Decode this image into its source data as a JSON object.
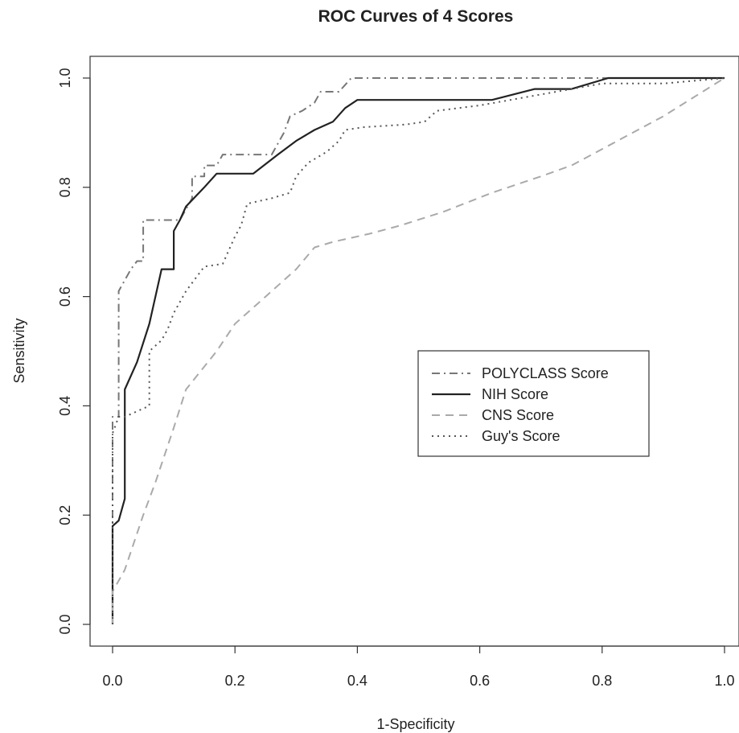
{
  "chart_data": {
    "type": "line",
    "title": "ROC Curves of 4 Scores",
    "xlabel": "1-Specificity",
    "ylabel": "Sensitivity",
    "xlim": [
      0,
      1
    ],
    "ylim": [
      0,
      1
    ],
    "x_ticks": [
      "0.0",
      "0.2",
      "0.4",
      "0.6",
      "0.8",
      "1.0"
    ],
    "y_ticks": [
      "0.0",
      "0.2",
      "0.4",
      "0.6",
      "0.8",
      "1.0"
    ],
    "grid": false,
    "legend_position": "center-right",
    "series": [
      {
        "name": "POLYCLASS Score",
        "style": "dashdot",
        "color": "#777777",
        "points": [
          [
            0,
            0
          ],
          [
            0,
            0.18
          ],
          [
            0,
            0.38
          ],
          [
            0.01,
            0.38
          ],
          [
            0.01,
            0.61
          ],
          [
            0.02,
            0.63
          ],
          [
            0.03,
            0.65
          ],
          [
            0.04,
            0.665
          ],
          [
            0.05,
            0.665
          ],
          [
            0.05,
            0.74
          ],
          [
            0.07,
            0.74
          ],
          [
            0.11,
            0.74
          ],
          [
            0.12,
            0.76
          ],
          [
            0.13,
            0.78
          ],
          [
            0.13,
            0.82
          ],
          [
            0.15,
            0.82
          ],
          [
            0.15,
            0.84
          ],
          [
            0.17,
            0.84
          ],
          [
            0.18,
            0.86
          ],
          [
            0.2,
            0.86
          ],
          [
            0.26,
            0.86
          ],
          [
            0.27,
            0.88
          ],
          [
            0.28,
            0.9
          ],
          [
            0.29,
            0.93
          ],
          [
            0.31,
            0.94
          ],
          [
            0.33,
            0.955
          ],
          [
            0.34,
            0.975
          ],
          [
            0.37,
            0.975
          ],
          [
            0.39,
            1.0
          ],
          [
            0.8,
            1.0
          ],
          [
            1.0,
            1.0
          ]
        ]
      },
      {
        "name": "NIH Score",
        "style": "solid",
        "color": "#222222",
        "points": [
          [
            0,
            0
          ],
          [
            0,
            0.18
          ],
          [
            0.01,
            0.19
          ],
          [
            0.02,
            0.23
          ],
          [
            0.02,
            0.43
          ],
          [
            0.04,
            0.48
          ],
          [
            0.06,
            0.55
          ],
          [
            0.07,
            0.6
          ],
          [
            0.08,
            0.65
          ],
          [
            0.1,
            0.65
          ],
          [
            0.1,
            0.72
          ],
          [
            0.11,
            0.74
          ],
          [
            0.12,
            0.765
          ],
          [
            0.15,
            0.8
          ],
          [
            0.17,
            0.825
          ],
          [
            0.23,
            0.825
          ],
          [
            0.27,
            0.86
          ],
          [
            0.3,
            0.885
          ],
          [
            0.33,
            0.905
          ],
          [
            0.36,
            0.92
          ],
          [
            0.38,
            0.945
          ],
          [
            0.4,
            0.96
          ],
          [
            0.62,
            0.96
          ],
          [
            0.69,
            0.98
          ],
          [
            0.75,
            0.98
          ],
          [
            0.81,
            1.0
          ],
          [
            1.0,
            1.0
          ]
        ]
      },
      {
        "name": "CNS Score",
        "style": "dashed",
        "color": "#aaaaaa",
        "points": [
          [
            0,
            0
          ],
          [
            0,
            0.06
          ],
          [
            0.02,
            0.1
          ],
          [
            0.05,
            0.2
          ],
          [
            0.07,
            0.26
          ],
          [
            0.1,
            0.36
          ],
          [
            0.12,
            0.43
          ],
          [
            0.17,
            0.5
          ],
          [
            0.2,
            0.55
          ],
          [
            0.25,
            0.6
          ],
          [
            0.3,
            0.65
          ],
          [
            0.33,
            0.69
          ],
          [
            0.36,
            0.7
          ],
          [
            0.42,
            0.715
          ],
          [
            0.47,
            0.73
          ],
          [
            0.54,
            0.755
          ],
          [
            0.62,
            0.79
          ],
          [
            0.7,
            0.82
          ],
          [
            0.75,
            0.84
          ],
          [
            0.8,
            0.87
          ],
          [
            0.9,
            0.93
          ],
          [
            1.0,
            1.0
          ]
        ]
      },
      {
        "name": "Guy's Score",
        "style": "dotted",
        "color": "#555555",
        "points": [
          [
            0,
            0
          ],
          [
            0,
            0.35
          ],
          [
            0.01,
            0.38
          ],
          [
            0.02,
            0.38
          ],
          [
            0.04,
            0.39
          ],
          [
            0.06,
            0.4
          ],
          [
            0.06,
            0.5
          ],
          [
            0.08,
            0.52
          ],
          [
            0.09,
            0.54
          ],
          [
            0.1,
            0.57
          ],
          [
            0.12,
            0.61
          ],
          [
            0.14,
            0.64
          ],
          [
            0.15,
            0.655
          ],
          [
            0.18,
            0.66
          ],
          [
            0.2,
            0.71
          ],
          [
            0.21,
            0.73
          ],
          [
            0.22,
            0.77
          ],
          [
            0.26,
            0.78
          ],
          [
            0.29,
            0.79
          ],
          [
            0.3,
            0.82
          ],
          [
            0.32,
            0.845
          ],
          [
            0.35,
            0.865
          ],
          [
            0.37,
            0.885
          ],
          [
            0.38,
            0.905
          ],
          [
            0.41,
            0.91
          ],
          [
            0.48,
            0.915
          ],
          [
            0.51,
            0.92
          ],
          [
            0.53,
            0.94
          ],
          [
            0.6,
            0.95
          ],
          [
            0.65,
            0.96
          ],
          [
            0.7,
            0.97
          ],
          [
            0.75,
            0.98
          ],
          [
            0.8,
            0.99
          ],
          [
            0.9,
            0.99
          ],
          [
            1.0,
            1.0
          ]
        ]
      }
    ]
  }
}
